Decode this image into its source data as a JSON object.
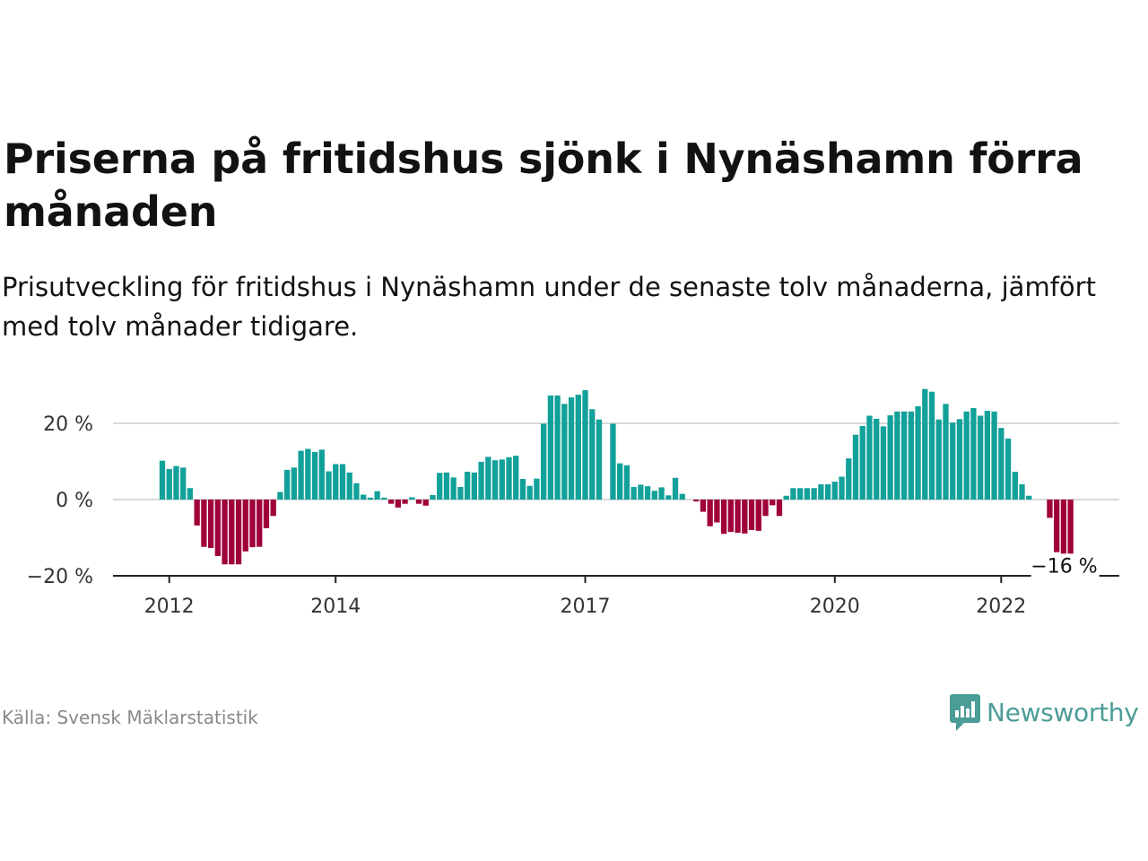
{
  "header": {
    "title": "Priserna på fritidshus sjönk i Nynäshamn förra månaden",
    "subtitle": "Prisutveckling för fritidshus i Nynäshamn under de senaste tolv månaderna, jämfört med tolv månader tidigare."
  },
  "footer": {
    "source": "Källa: Svensk Mäklarstatistik",
    "brand": "Newsworthy"
  },
  "colors": {
    "positive": "#12a19a",
    "negative": "#a0003a",
    "grid": "#d9d9d9",
    "axis": "#222222",
    "brand": "#4c9c98"
  },
  "chart_data": {
    "type": "bar",
    "ylim": [
      -20,
      30
    ],
    "y_ticks": [
      {
        "value": 20,
        "label": "20 %"
      },
      {
        "value": 0,
        "label": "0 %"
      },
      {
        "value": -20,
        "label": "−20 %"
      }
    ],
    "x_ticks": [
      {
        "value": 2012,
        "label": "2012"
      },
      {
        "value": 2014,
        "label": "2014"
      },
      {
        "value": 2017,
        "label": "2017"
      },
      {
        "value": 2020,
        "label": "2020"
      },
      {
        "value": 2022,
        "label": "2022"
      }
    ],
    "x_start": 2011.917,
    "period_months": 1,
    "end_label": "−16 %",
    "values": [
      10.2,
      8,
      8.8,
      8.4,
      3,
      -6.8,
      -12.4,
      -12.7,
      -14.8,
      -17,
      -17,
      -17,
      -13.6,
      -12.5,
      -12.4,
      -7.5,
      -4.3,
      2,
      7.8,
      8.4,
      12.8,
      13.3,
      12.5,
      13.1,
      7.4,
      9.3,
      9.3,
      7.1,
      4.3,
      1.3,
      0.5,
      2.2,
      0.5,
      -1.1,
      -2.1,
      -1.1,
      0.6,
      -1.1,
      -1.6,
      1.2,
      7,
      7.1,
      5.8,
      3.3,
      7.3,
      7.1,
      9.9,
      11.2,
      10.3,
      10.5,
      11.1,
      11.5,
      5.4,
      3.6,
      5.5,
      19.9,
      27.3,
      27.3,
      25.1,
      26.8,
      27.5,
      28.7,
      23.7,
      21,
      0,
      19.9,
      9.5,
      9,
      3.3,
      3.9,
      3.5,
      2.3,
      3.2,
      1.1,
      5.7,
      1.5,
      0,
      -0.5,
      -3.2,
      -7,
      -6,
      -9,
      -8.5,
      -8.7,
      -8.9,
      -8,
      -8.2,
      -4.3,
      -1.5,
      -4.3,
      1,
      3,
      3,
      3,
      3,
      4,
      4,
      4.7,
      6,
      10.8,
      17,
      19.3,
      22,
      21.2,
      19.2,
      22.1,
      23.1,
      23.1,
      23.1,
      24.5,
      29,
      28.3,
      21,
      25.1,
      20.2,
      21.1,
      23.1,
      24,
      22,
      23.3,
      23.1,
      18.8,
      16,
      7.3,
      4,
      1,
      0,
      0,
      -4.8,
      -13.8,
      -15.3,
      -15.6
    ]
  }
}
